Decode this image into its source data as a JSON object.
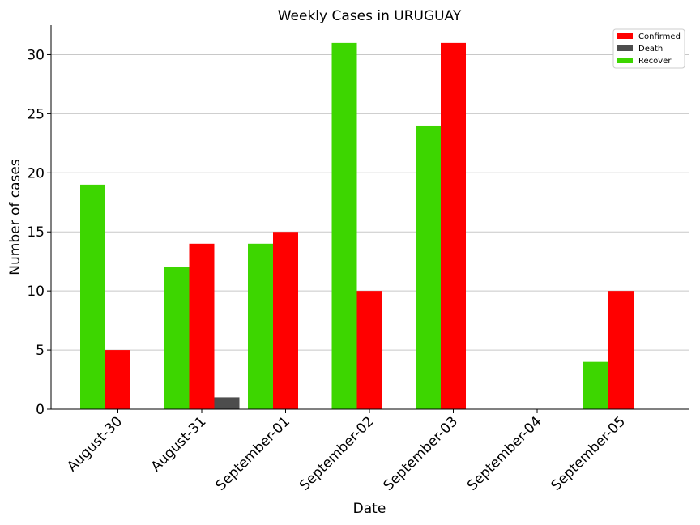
{
  "chart_data": {
    "type": "bar",
    "title": "Weekly Cases in URUGUAY",
    "xlabel": "Date",
    "ylabel": "Number of cases",
    "categories": [
      "August-30",
      "August-31",
      "September-01",
      "September-02",
      "September-03",
      "September-04",
      "September-05"
    ],
    "series": [
      {
        "name": "Recover",
        "color": "#3dd600",
        "values": [
          19,
          12,
          14,
          31,
          24,
          0,
          4
        ]
      },
      {
        "name": "Confirmed",
        "color": "#ff0000",
        "values": [
          5,
          14,
          15,
          10,
          31,
          0,
          10
        ]
      },
      {
        "name": "Death",
        "color": "#4d4d4d",
        "values": [
          0,
          1,
          0,
          0,
          0,
          0,
          0
        ]
      }
    ],
    "legend_order": [
      "Confirmed",
      "Death",
      "Recover"
    ],
    "ylim": [
      0,
      32.5
    ],
    "yticks": [
      0,
      5,
      10,
      15,
      20,
      25,
      30
    ],
    "grid": "horizontal",
    "legend_position": "top-right",
    "xtick_rotation": 45
  }
}
